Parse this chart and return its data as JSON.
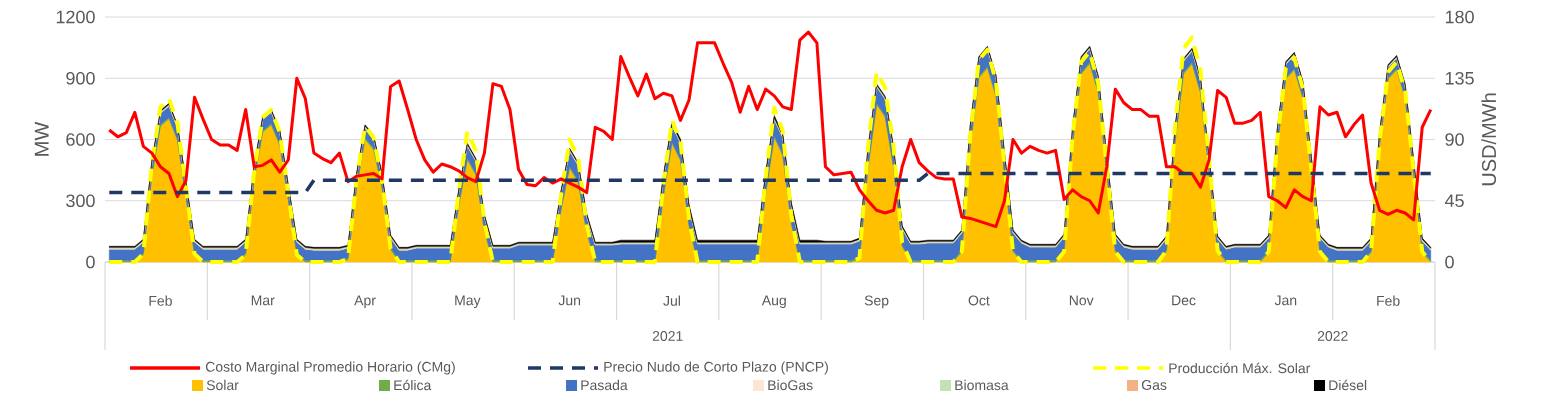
{
  "chart_data": {
    "type": "area",
    "stacked": true,
    "categories": [
      null,
      null,
      null,
      null,
      null,
      null,
      "Feb",
      null,
      null,
      null,
      null,
      null,
      null,
      null,
      null,
      null,
      null,
      null,
      "Mar",
      null,
      null,
      null,
      null,
      null,
      null,
      null,
      null,
      null,
      null,
      null,
      "Apr",
      null,
      null,
      null,
      null,
      null,
      null,
      null,
      null,
      null,
      null,
      null,
      "May",
      null,
      null,
      null,
      null,
      null,
      null,
      null,
      null,
      null,
      null,
      null,
      "Jun",
      null,
      null,
      null,
      null,
      null,
      null,
      null,
      null,
      null,
      null,
      null,
      "Jul",
      null,
      null,
      null,
      null,
      null,
      null,
      null,
      null,
      null,
      null,
      null,
      "Aug",
      null,
      null,
      null,
      null,
      null,
      null,
      null,
      null,
      null,
      null,
      null,
      "Sep",
      null,
      null,
      null,
      null,
      null,
      null,
      null,
      null,
      null,
      null,
      null,
      "Oct",
      null,
      null,
      null,
      null,
      null,
      null,
      null,
      null,
      null,
      null,
      null,
      "Nov",
      null,
      null,
      null,
      null,
      null,
      null,
      null,
      null,
      null,
      null,
      null,
      "Dec",
      null,
      null,
      null,
      null,
      null,
      null,
      null,
      null,
      null,
      null,
      null,
      "Jan",
      null,
      null,
      null,
      null,
      null,
      null,
      null,
      null,
      null,
      null,
      null,
      "Feb",
      null,
      null,
      null,
      null,
      null
    ],
    "ylim": [
      0,
      1200
    ],
    "yticks": [
      0,
      300,
      600,
      900,
      1200
    ],
    "y2lim": [
      0,
      180
    ],
    "y2ticks": [
      0,
      45,
      90,
      135,
      180
    ],
    "ylabel": "MW",
    "y2label": "USD/MWh",
    "annotations": [
      "2021",
      "2022"
    ],
    "grid": "y",
    "legend": "bottom",
    "series": [
      {
        "name": "Solar",
        "color": "#ffc000",
        "values": [
          0,
          0,
          0,
          0,
          35,
          420,
          665,
          700,
          595,
          315,
          35,
          0,
          0,
          0,
          0,
          0,
          35,
          400,
          635,
          670,
          570,
          300,
          35,
          0,
          0,
          0,
          0,
          0,
          10,
          360,
          600,
          550,
          360,
          60,
          0,
          0,
          0,
          0,
          0,
          0,
          0,
          275,
          500,
          425,
          150,
          0,
          0,
          0,
          0,
          0,
          0,
          0,
          0,
          255,
          460,
          390,
          140,
          0,
          0,
          0,
          0,
          0,
          0,
          0,
          0,
          320,
          580,
          495,
          175,
          0,
          0,
          0,
          0,
          0,
          0,
          0,
          0,
          335,
          610,
          520,
          185,
          0,
          0,
          0,
          0,
          0,
          0,
          0,
          15,
          460,
          770,
          710,
          460,
          75,
          0,
          0,
          0,
          0,
          0,
          0,
          50,
          570,
          900,
          950,
          810,
          430,
          50,
          0,
          0,
          0,
          0,
          0,
          50,
          580,
          920,
          970,
          825,
          435,
          50,
          0,
          0,
          0,
          0,
          0,
          50,
          580,
          920,
          970,
          825,
          435,
          50,
          0,
          0,
          0,
          0,
          0,
          45,
          565,
          895,
          940,
          800,
          425,
          45,
          0,
          0,
          0,
          0,
          0,
          45,
          565,
          895,
          940,
          800,
          425,
          45,
          0
        ]
      },
      {
        "name": "Eólica",
        "color": "#70ad47",
        "values": [
          8,
          8,
          8,
          8,
          8,
          8,
          8,
          8,
          8,
          8,
          8,
          8,
          8,
          8,
          8,
          8,
          8,
          8,
          8,
          8,
          8,
          8,
          8,
          8,
          8,
          8,
          8,
          8,
          8,
          8,
          8,
          8,
          8,
          8,
          8,
          8,
          8,
          8,
          8,
          8,
          8,
          8,
          8,
          8,
          8,
          8,
          8,
          8,
          8,
          8,
          8,
          8,
          8,
          8,
          8,
          8,
          8,
          8,
          8,
          8,
          8,
          8,
          8,
          8,
          8,
          8,
          8,
          8,
          8,
          8,
          8,
          8,
          8,
          8,
          8,
          8,
          8,
          8,
          8,
          8,
          8,
          8,
          8,
          8,
          8,
          8,
          8,
          8,
          8,
          8,
          8,
          8,
          8,
          8,
          8,
          8,
          8,
          8,
          8,
          8,
          8,
          8,
          8,
          8,
          8,
          8,
          8,
          8,
          8,
          8,
          8,
          8,
          8,
          8,
          8,
          8,
          8,
          8,
          8,
          8,
          8,
          8,
          8,
          8,
          8,
          8,
          8,
          8,
          8,
          8,
          8,
          8,
          8,
          8,
          8,
          8,
          8,
          8,
          8,
          8,
          8,
          8,
          8,
          8,
          8,
          8,
          8,
          8,
          8,
          8,
          8,
          8,
          8,
          8,
          8,
          8
        ]
      },
      {
        "name": "Pasada",
        "color": "#4472c4",
        "values": [
          55,
          55,
          55,
          55,
          55,
          55,
          55,
          55,
          55,
          55,
          55,
          55,
          55,
          55,
          55,
          55,
          55,
          55,
          55,
          55,
          55,
          55,
          55,
          55,
          50,
          50,
          50,
          50,
          50,
          50,
          50,
          50,
          50,
          50,
          50,
          50,
          60,
          60,
          60,
          60,
          60,
          60,
          60,
          60,
          60,
          60,
          60,
          60,
          75,
          75,
          75,
          75,
          75,
          75,
          75,
          75,
          75,
          75,
          75,
          75,
          80,
          80,
          80,
          80,
          80,
          80,
          80,
          80,
          80,
          80,
          80,
          80,
          80,
          80,
          80,
          80,
          80,
          80,
          80,
          80,
          80,
          80,
          80,
          80,
          80,
          80,
          80,
          80,
          80,
          80,
          80,
          80,
          80,
          80,
          80,
          80,
          85,
          85,
          85,
          85,
          85,
          85,
          85,
          85,
          85,
          85,
          85,
          85,
          65,
          65,
          65,
          65,
          65,
          65,
          65,
          65,
          65,
          65,
          65,
          65,
          55,
          55,
          55,
          55,
          55,
          55,
          55,
          55,
          55,
          55,
          55,
          55,
          65,
          65,
          65,
          65,
          65,
          65,
          65,
          65,
          65,
          65,
          65,
          65,
          50,
          50,
          50,
          50,
          50,
          50,
          50,
          50,
          50,
          50,
          50,
          50
        ]
      },
      {
        "name": "BioGas",
        "color": "#fbe5d6",
        "values": [
          2,
          2,
          2,
          2,
          2,
          2,
          2,
          2,
          2,
          2,
          2,
          2,
          2,
          2,
          2,
          2,
          2,
          2,
          2,
          2,
          2,
          2,
          2,
          2,
          2,
          2,
          2,
          2,
          2,
          2,
          2,
          2,
          2,
          2,
          2,
          2,
          2,
          2,
          2,
          2,
          2,
          2,
          2,
          2,
          2,
          2,
          2,
          2,
          2,
          2,
          2,
          2,
          2,
          2,
          2,
          2,
          2,
          2,
          2,
          2,
          2,
          2,
          2,
          2,
          2,
          2,
          2,
          2,
          2,
          2,
          2,
          2,
          2,
          2,
          2,
          2,
          2,
          2,
          2,
          2,
          2,
          2,
          2,
          2,
          2,
          2,
          2,
          2,
          2,
          2,
          2,
          2,
          2,
          2,
          2,
          2,
          2,
          2,
          2,
          2,
          2,
          2,
          2,
          2,
          2,
          2,
          2,
          2,
          2,
          2,
          2,
          2,
          2,
          2,
          2,
          2,
          2,
          2,
          2,
          2,
          2,
          2,
          2,
          2,
          2,
          2,
          2,
          2,
          2,
          2,
          2,
          2,
          2,
          2,
          2,
          2,
          2,
          2,
          2,
          2,
          2,
          2,
          2,
          2,
          2,
          2,
          2,
          2,
          2,
          2,
          2,
          2,
          2,
          2,
          2,
          2
        ]
      },
      {
        "name": "Biomasa",
        "color": "#c5e0b4",
        "values": [
          5,
          5,
          5,
          5,
          5,
          5,
          5,
          5,
          5,
          5,
          5,
          5,
          5,
          5,
          5,
          5,
          5,
          5,
          5,
          5,
          5,
          5,
          5,
          5,
          5,
          5,
          5,
          5,
          5,
          5,
          5,
          5,
          5,
          5,
          5,
          5,
          5,
          5,
          5,
          5,
          5,
          5,
          5,
          5,
          5,
          5,
          5,
          5,
          5,
          5,
          5,
          5,
          5,
          5,
          5,
          5,
          5,
          5,
          5,
          5,
          5,
          5,
          5,
          5,
          5,
          5,
          5,
          5,
          5,
          5,
          5,
          5,
          5,
          5,
          5,
          5,
          5,
          5,
          5,
          5,
          5,
          5,
          5,
          5,
          5,
          5,
          5,
          5,
          5,
          5,
          5,
          5,
          5,
          5,
          5,
          5,
          5,
          5,
          5,
          5,
          5,
          5,
          5,
          5,
          5,
          5,
          5,
          5,
          5,
          5,
          5,
          5,
          5,
          5,
          5,
          5,
          5,
          5,
          5,
          5,
          5,
          5,
          5,
          5,
          5,
          5,
          5,
          5,
          5,
          5,
          5,
          5,
          5,
          5,
          5,
          5,
          5,
          5,
          5,
          5,
          5,
          5,
          5,
          5,
          5,
          5,
          5,
          5,
          5,
          5,
          5,
          5,
          5,
          5,
          5,
          5
        ]
      },
      {
        "name": "Gas",
        "color": "#f4b183",
        "values": [
          2,
          2,
          2,
          2,
          2,
          2,
          2,
          2,
          2,
          2,
          2,
          2,
          2,
          2,
          2,
          2,
          2,
          2,
          2,
          2,
          2,
          2,
          2,
          2,
          2,
          2,
          2,
          2,
          2,
          2,
          2,
          2,
          2,
          2,
          2,
          2,
          2,
          2,
          2,
          2,
          2,
          2,
          2,
          2,
          2,
          2,
          2,
          2,
          2,
          2,
          2,
          2,
          2,
          2,
          2,
          2,
          2,
          2,
          2,
          2,
          2,
          2,
          2,
          2,
          2,
          2,
          2,
          2,
          2,
          2,
          2,
          2,
          2,
          2,
          2,
          2,
          2,
          2,
          2,
          2,
          2,
          2,
          2,
          2,
          2,
          2,
          2,
          2,
          2,
          2,
          2,
          2,
          2,
          2,
          2,
          2,
          2,
          2,
          2,
          2,
          2,
          2,
          2,
          2,
          2,
          2,
          2,
          2,
          2,
          2,
          2,
          2,
          2,
          2,
          2,
          2,
          2,
          2,
          2,
          2,
          2,
          2,
          2,
          2,
          2,
          2,
          2,
          2,
          2,
          2,
          2,
          2,
          2,
          2,
          2,
          2,
          2,
          2,
          2,
          2,
          2,
          2,
          2,
          2,
          2,
          2,
          2,
          2,
          2,
          2,
          2,
          2,
          2,
          2,
          2,
          2
        ]
      },
      {
        "name": "Diésel",
        "color": "#000000",
        "values": [
          5,
          5,
          5,
          5,
          5,
          5,
          5,
          5,
          5,
          5,
          5,
          5,
          5,
          5,
          5,
          5,
          5,
          5,
          5,
          5,
          5,
          5,
          5,
          5,
          5,
          5,
          5,
          5,
          5,
          5,
          5,
          5,
          5,
          5,
          5,
          5,
          5,
          5,
          5,
          5,
          5,
          5,
          5,
          5,
          5,
          5,
          5,
          5,
          5,
          5,
          5,
          5,
          5,
          5,
          5,
          5,
          5,
          5,
          5,
          5,
          10,
          10,
          10,
          10,
          10,
          10,
          10,
          10,
          10,
          10,
          10,
          10,
          10,
          10,
          10,
          10,
          10,
          10,
          10,
          10,
          10,
          10,
          10,
          10,
          5,
          5,
          5,
          5,
          5,
          5,
          5,
          5,
          5,
          5,
          5,
          5,
          5,
          5,
          5,
          5,
          5,
          5,
          5,
          5,
          5,
          5,
          5,
          5,
          5,
          5,
          5,
          5,
          5,
          5,
          5,
          5,
          5,
          5,
          5,
          5,
          5,
          5,
          5,
          5,
          5,
          5,
          5,
          5,
          5,
          5,
          5,
          5,
          5,
          5,
          5,
          5,
          5,
          5,
          5,
          5,
          5,
          5,
          5,
          5,
          5,
          5,
          5,
          5,
          5,
          5,
          5,
          5,
          5,
          5,
          5,
          5
        ]
      },
      {
        "name": "Costo Marginal Promedio Horario (CMg)",
        "type": "line",
        "axis": "y2",
        "color": "#ff0000",
        "values": [
          97,
          92,
          95,
          110,
          85,
          80,
          70,
          65,
          48,
          60,
          121,
          105,
          90,
          86,
          86,
          82,
          112,
          70,
          71,
          75,
          66,
          75,
          135,
          120,
          80,
          76,
          73,
          80,
          59,
          63,
          64,
          65,
          61,
          129,
          133,
          112,
          90,
          75,
          66,
          72,
          70,
          67,
          62,
          59,
          80,
          131,
          129,
          112,
          68,
          57,
          56,
          62,
          58,
          61,
          58,
          55,
          51,
          99,
          96,
          90,
          151,
          136,
          122,
          138,
          120,
          124,
          122,
          104,
          119,
          161,
          161,
          161,
          146,
          132,
          110,
          129,
          112,
          127,
          122,
          114,
          112,
          163,
          169,
          161,
          70,
          64,
          65,
          66,
          53,
          45,
          38,
          36,
          38,
          70,
          90,
          73,
          67,
          62,
          61,
          61,
          33,
          32,
          30,
          28,
          26,
          45,
          90,
          80,
          85,
          82,
          80,
          82,
          46,
          53,
          48,
          45,
          36,
          70,
          127,
          117,
          112,
          112,
          107,
          107,
          70,
          70,
          65,
          65,
          55,
          75,
          126,
          121,
          102,
          102,
          104,
          110,
          48,
          45,
          40,
          53,
          48,
          45,
          114,
          108,
          110,
          92,
          101,
          108,
          58,
          38,
          35,
          38,
          36,
          31,
          99,
          112
        ]
      },
      {
        "name": "Precio Nudo de Corto Plazo (PNCP)",
        "type": "line",
        "axis": "y2",
        "line_style": "dashed",
        "color": "#1f3864",
        "values": [
          51,
          51,
          51,
          51,
          51,
          51,
          51,
          51,
          51,
          51,
          51,
          51,
          51,
          51,
          51,
          51,
          51,
          51,
          51,
          51,
          51,
          51,
          51,
          51,
          60,
          60,
          60,
          60,
          60,
          60,
          60,
          60,
          60,
          60,
          60,
          60,
          60,
          60,
          60,
          60,
          60,
          60,
          60,
          60,
          60,
          60,
          60,
          60,
          60,
          60,
          60,
          60,
          60,
          60,
          60,
          60,
          60,
          60,
          60,
          60,
          60,
          60,
          60,
          60,
          60,
          60,
          60,
          60,
          60,
          60,
          60,
          60,
          60,
          60,
          60,
          60,
          60,
          60,
          60,
          60,
          60,
          60,
          60,
          60,
          60,
          60,
          60,
          60,
          60,
          60,
          60,
          60,
          60,
          60,
          60,
          60,
          65,
          65,
          65,
          65,
          65,
          65,
          65,
          65,
          65,
          65,
          65,
          65,
          65,
          65,
          65,
          65,
          65,
          65,
          65,
          65,
          65,
          65,
          65,
          65,
          65,
          65,
          65,
          65,
          65,
          65,
          65,
          65,
          65,
          65,
          65,
          65,
          65,
          65,
          65,
          65,
          65,
          65,
          65,
          65,
          65,
          65,
          65,
          65,
          65,
          65,
          65,
          65,
          65,
          65,
          65,
          65,
          65,
          65,
          65,
          65
        ]
      },
      {
        "name": "Producción Máx. Solar",
        "type": "line",
        "line_style": "dashed",
        "color": "#ffff00",
        "values": [
          0,
          0,
          0,
          0,
          40,
          480,
          760,
          800,
          680,
          360,
          40,
          0,
          0,
          0,
          0,
          0,
          35,
          445,
          710,
          745,
          635,
          335,
          35,
          0,
          0,
          0,
          0,
          0,
          15,
          400,
          665,
          610,
          400,
          65,
          0,
          0,
          0,
          0,
          0,
          0,
          0,
          350,
          640,
          545,
          190,
          0,
          0,
          0,
          0,
          0,
          0,
          0,
          0,
          330,
          600,
          510,
          180,
          0,
          0,
          0,
          0,
          0,
          0,
          0,
          0,
          380,
          695,
          590,
          210,
          0,
          0,
          0,
          0,
          0,
          0,
          0,
          0,
          415,
          755,
          640,
          225,
          0,
          0,
          0,
          0,
          0,
          0,
          0,
          20,
          560,
          930,
          855,
          560,
          95,
          0,
          0,
          0,
          0,
          0,
          0,
          50,
          625,
          990,
          1040,
          885,
          470,
          50,
          0,
          0,
          0,
          0,
          0,
          50,
          620,
          980,
          1030,
          875,
          465,
          50,
          0,
          0,
          0,
          0,
          0,
          55,
          660,
          1045,
          1100,
          935,
          495,
          55,
          0,
          0,
          0,
          0,
          0,
          50,
          600,
          950,
          1000,
          850,
          450,
          50,
          0,
          0,
          0,
          0,
          0,
          50,
          590,
          930,
          980,
          835,
          440,
          50,
          0
        ]
      }
    ]
  }
}
